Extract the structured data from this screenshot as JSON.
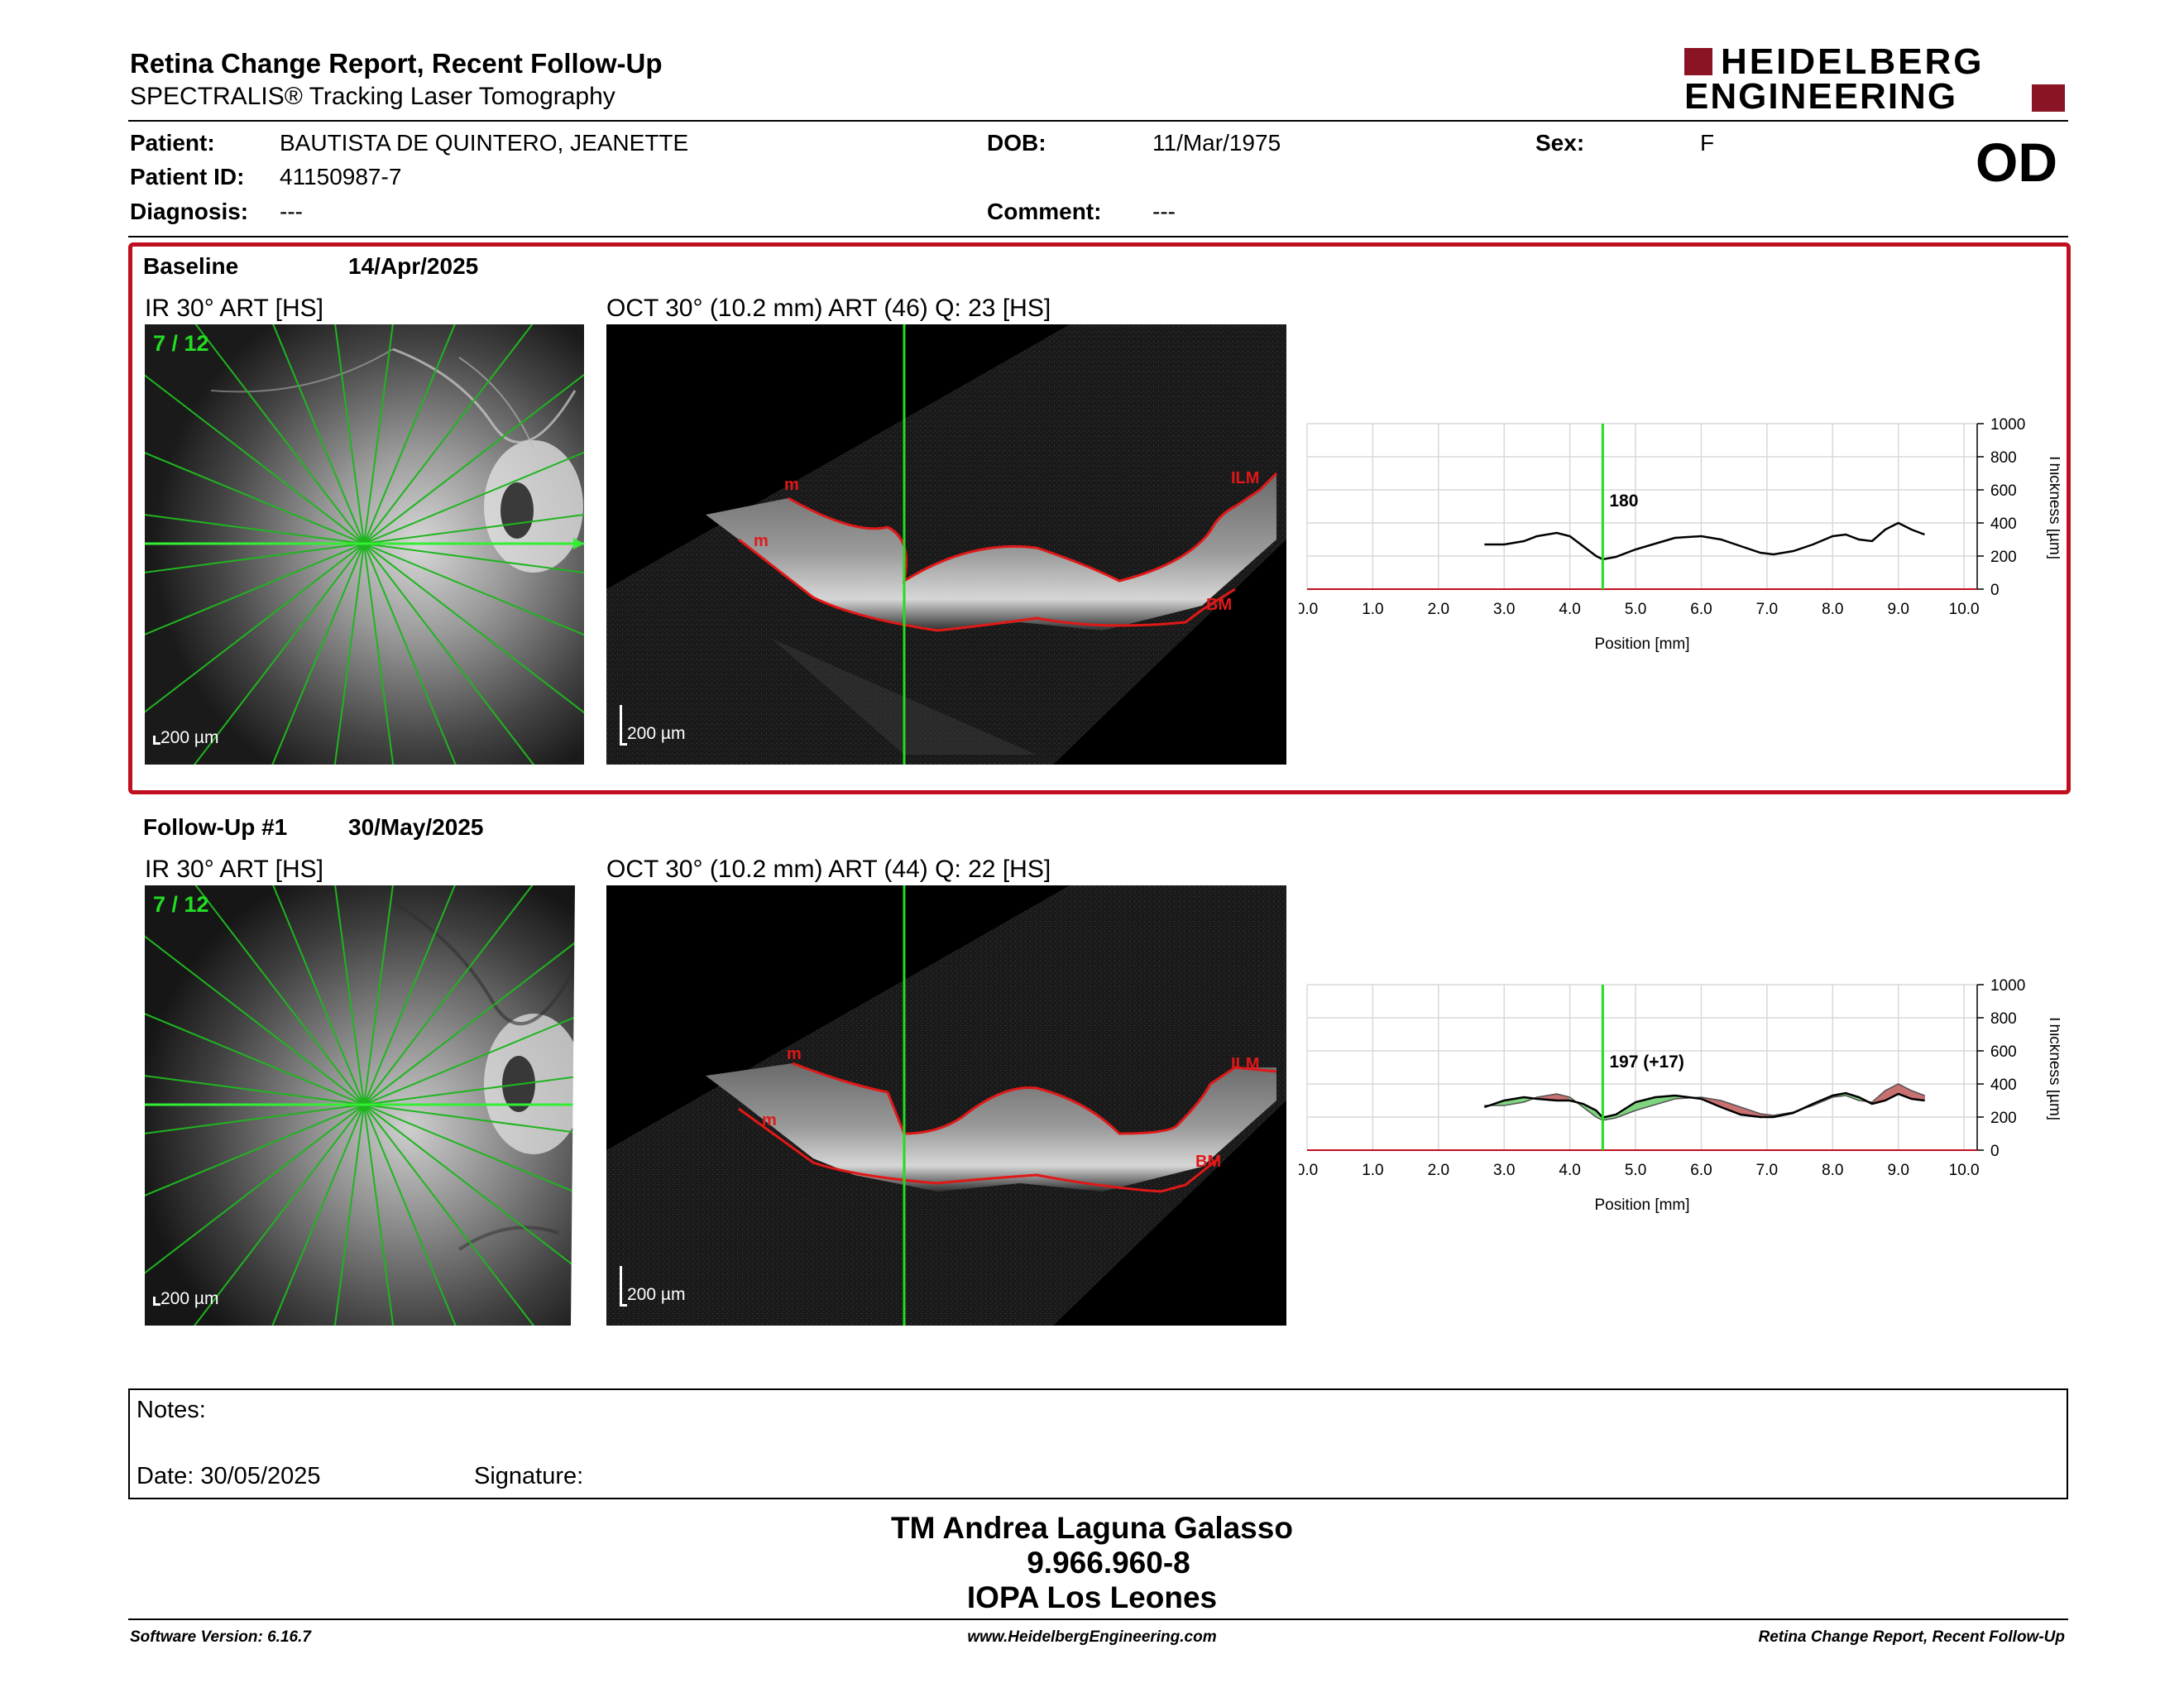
{
  "header": {
    "title": "Retina Change Report, Recent Follow-Up",
    "subtitle": "SPECTRALIS® Tracking Laser Tomography",
    "logo_line1": "HEIDELBERG",
    "logo_line2": "ENGINEERING",
    "eye": "OD"
  },
  "patient": {
    "patient_label": "Patient:",
    "patient_value": "BAUTISTA DE QUINTERO, JEANETTE",
    "id_label": "Patient ID:",
    "id_value": "41150987-7",
    "diagnosis_label": "Diagnosis:",
    "diagnosis_value": "---",
    "dob_label": "DOB:",
    "dob_value": "11/Mar/1975",
    "comment_label": "Comment:",
    "comment_value": "---",
    "sex_label": "Sex:",
    "sex_value": "F"
  },
  "baseline": {
    "label": "Baseline",
    "date": "14/Apr/2025",
    "ir_title": "IR 30° ART [HS]",
    "oct_title": "OCT 30° (10.2 mm) ART (46) Q: 23 [HS]",
    "counter": "7 / 12",
    "scale_ir": "200 µm",
    "scale_oct": "200 µm",
    "layer_ilm": "ILM",
    "layer_bm": "BM",
    "layer_m": "m",
    "cursor_value": "180"
  },
  "followup": {
    "label": "Follow-Up #1",
    "date": "30/May/2025",
    "ir_title": "IR 30° ART [HS]",
    "oct_title": "OCT 30° (10.2 mm) ART (44) Q: 22 [HS]",
    "counter": "7 / 12",
    "scale_ir": "200 µm",
    "scale_oct": "200 µm",
    "layer_ilm": "ILM",
    "layer_bm": "BM",
    "layer_m": "m",
    "cursor_value": "197 (+17)"
  },
  "chart_data": [
    {
      "type": "line",
      "xlabel": "Position [mm]",
      "ylabel": "Thickness [µm]",
      "xlim": [
        0,
        10.2
      ],
      "ylim": [
        0,
        1000
      ],
      "x_ticks": [
        "0.0",
        "1.0",
        "2.0",
        "3.0",
        "4.0",
        "5.0",
        "6.0",
        "7.0",
        "8.0",
        "9.0",
        "10.0"
      ],
      "y_ticks": [
        "0",
        "200",
        "400",
        "600",
        "800",
        "1000"
      ],
      "cursor_x": 4.5,
      "grid": true,
      "series": [
        {
          "x": [
            2.7,
            3.0,
            3.3,
            3.5,
            3.8,
            4.0,
            4.2,
            4.4,
            4.5,
            4.7,
            5.0,
            5.3,
            5.6,
            6.0,
            6.3,
            6.6,
            6.9,
            7.1,
            7.4,
            7.7,
            8.0,
            8.2,
            8.4,
            8.6,
            8.8,
            9.0,
            9.2,
            9.4
          ],
          "y": [
            270,
            270,
            290,
            320,
            340,
            320,
            260,
            200,
            180,
            195,
            240,
            275,
            310,
            320,
            300,
            260,
            220,
            210,
            230,
            270,
            320,
            330,
            300,
            290,
            360,
            400,
            360,
            330
          ]
        }
      ]
    },
    {
      "type": "area",
      "xlabel": "Position [mm]",
      "ylabel": "Thickness [µm]",
      "xlim": [
        0,
        10.2
      ],
      "ylim": [
        0,
        1000
      ],
      "x_ticks": [
        "0.0",
        "1.0",
        "2.0",
        "3.0",
        "4.0",
        "5.0",
        "6.0",
        "7.0",
        "8.0",
        "9.0",
        "10.0"
      ],
      "y_ticks": [
        "0",
        "200",
        "400",
        "600",
        "800",
        "1000"
      ],
      "cursor_x": 4.5,
      "grid": true,
      "series": [
        {
          "x": [
            2.7,
            3.0,
            3.3,
            3.5,
            3.8,
            4.0,
            4.2,
            4.4,
            4.5,
            4.7,
            5.0,
            5.3,
            5.6,
            6.0,
            6.3,
            6.6,
            6.9,
            7.1,
            7.4,
            7.7,
            8.0,
            8.2,
            8.4,
            8.6,
            8.8,
            9.0,
            9.2,
            9.4
          ],
          "y": [
            270,
            270,
            290,
            320,
            340,
            320,
            260,
            200,
            180,
            195,
            240,
            275,
            310,
            320,
            300,
            260,
            220,
            210,
            230,
            270,
            320,
            330,
            300,
            290,
            360,
            400,
            360,
            330
          ]
        },
        {
          "x": [
            2.7,
            3.0,
            3.3,
            3.5,
            3.8,
            4.0,
            4.2,
            4.4,
            4.5,
            4.7,
            5.0,
            5.3,
            5.6,
            6.0,
            6.3,
            6.6,
            6.9,
            7.1,
            7.4,
            7.7,
            8.0,
            8.2,
            8.4,
            8.6,
            8.8,
            9.0,
            9.2,
            9.4
          ],
          "y": [
            260,
            300,
            320,
            310,
            300,
            300,
            280,
            240,
            197,
            215,
            290,
            320,
            330,
            310,
            260,
            215,
            200,
            200,
            225,
            280,
            330,
            345,
            320,
            280,
            300,
            340,
            310,
            300
          ]
        }
      ]
    }
  ],
  "notes": {
    "notes_label": "Notes:",
    "date_label": "Date: 30/05/2025",
    "signature_label": "Signature:"
  },
  "signer": {
    "name": "TM Andrea Laguna Galasso",
    "id": "9.966.960-8",
    "org": "IOPA Los Leones"
  },
  "footer": {
    "software": "Software Version: 6.16.7",
    "website": "www.HeidelbergEngineering.com",
    "report": "Retina Change Report, Recent Follow-Up"
  },
  "colors": {
    "accent": "#c0101f",
    "green": "#22dd22",
    "layer_red": "#e01818",
    "increase": "#7fd47f",
    "decrease": "#c97070"
  }
}
